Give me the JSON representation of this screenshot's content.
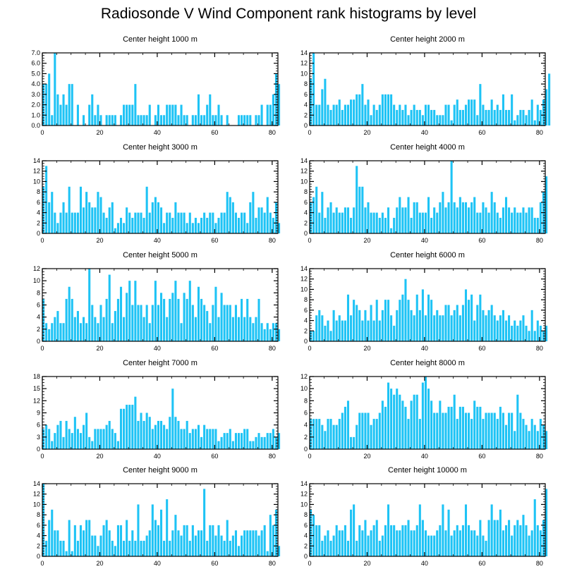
{
  "figure": {
    "title": "Radiosonde V Wind Component rank histograms by level"
  },
  "colors": {
    "bar": "#1ec3f5",
    "axis": "#000000",
    "background": "#ffffff"
  },
  "chart_data": [
    {
      "type": "bar",
      "title": "Center height 1000 m",
      "xlabel": "",
      "ylabel": "",
      "xlim": [
        0,
        82
      ],
      "ylim": [
        0,
        7
      ],
      "xticks": [
        0,
        20,
        40,
        60,
        80
      ],
      "yticks": [
        0,
        1,
        2,
        3,
        4,
        5,
        6,
        7
      ],
      "ytick_labels": [
        "0.0",
        "1.0",
        "2.0",
        "3.0",
        "4.0",
        "5.0",
        "6.0",
        "7.0"
      ],
      "values": [
        4,
        4,
        5,
        1,
        7,
        3,
        2,
        3,
        2,
        4,
        4,
        0,
        2,
        0,
        1,
        0,
        2,
        3,
        1,
        2,
        1,
        0,
        1,
        1,
        1,
        1,
        0,
        1,
        2,
        2,
        2,
        2,
        4,
        1,
        1,
        1,
        1,
        2,
        0,
        1,
        2,
        1,
        1,
        2,
        2,
        2,
        2,
        1,
        2,
        1,
        1,
        0,
        1,
        1,
        3,
        1,
        1,
        2,
        3,
        1,
        1,
        2,
        1,
        0,
        1,
        0,
        0,
        0,
        1,
        1,
        1,
        1,
        1,
        0,
        1,
        1,
        2,
        0,
        2,
        2,
        3,
        5,
        4
      ]
    },
    {
      "type": "bar",
      "title": "Center height 2000 m",
      "xlabel": "",
      "ylabel": "",
      "xlim": [
        0,
        82
      ],
      "ylim": [
        0,
        14
      ],
      "xticks": [
        0,
        20,
        40,
        60,
        80
      ],
      "yticks": [
        0,
        2,
        4,
        6,
        8,
        10,
        12,
        14
      ],
      "ytick_labels": [
        "0",
        "2",
        "4",
        "6",
        "8",
        "10",
        "12",
        "14"
      ],
      "values": [
        9,
        14,
        4,
        4,
        7,
        9,
        4,
        3,
        4,
        4,
        5,
        3,
        4,
        4,
        5,
        5,
        6,
        6,
        8,
        4,
        5,
        2,
        4,
        3,
        4,
        6,
        6,
        6,
        6,
        4,
        3,
        4,
        3,
        4,
        2,
        3,
        4,
        3,
        3,
        2,
        4,
        4,
        3,
        3,
        2,
        2,
        2,
        4,
        4,
        1,
        4,
        5,
        3,
        3,
        4,
        5,
        5,
        5,
        2,
        8,
        4,
        3,
        3,
        5,
        3,
        4,
        3,
        6,
        3,
        3,
        6,
        1,
        2,
        3,
        3,
        2,
        3,
        5,
        1,
        4,
        3,
        5,
        7,
        10
      ]
    },
    {
      "type": "bar",
      "title": "Center height 3000 m",
      "xlabel": "",
      "ylabel": "",
      "xlim": [
        0,
        82
      ],
      "ylim": [
        0,
        14
      ],
      "xticks": [
        0,
        20,
        40,
        60,
        80
      ],
      "yticks": [
        0,
        2,
        4,
        6,
        8,
        10,
        12,
        14
      ],
      "ytick_labels": [
        "0",
        "2",
        "4",
        "6",
        "8",
        "10",
        "12",
        "14"
      ],
      "values": [
        9,
        13,
        6,
        8,
        4,
        2,
        4,
        6,
        4,
        9,
        4,
        4,
        4,
        9,
        5,
        8,
        6,
        5,
        5,
        8,
        7,
        4,
        3,
        5,
        6,
        1,
        2,
        3,
        2,
        5,
        4,
        3,
        4,
        4,
        4,
        3,
        9,
        4,
        6,
        7,
        6,
        5,
        2,
        4,
        4,
        3,
        6,
        4,
        4,
        4,
        2,
        4,
        2,
        3,
        2,
        3,
        4,
        3,
        4,
        4,
        2,
        3,
        4,
        4,
        8,
        7,
        6,
        4,
        3,
        4,
        4,
        2,
        6,
        8,
        3,
        5,
        5,
        4,
        7,
        4,
        3,
        6,
        2
      ]
    },
    {
      "type": "bar",
      "title": "Center height 4000 m",
      "xlabel": "",
      "ylabel": "",
      "xlim": [
        0,
        82
      ],
      "ylim": [
        0,
        14
      ],
      "xticks": [
        0,
        20,
        40,
        60,
        80
      ],
      "yticks": [
        0,
        2,
        4,
        6,
        8,
        10,
        12,
        14
      ],
      "ytick_labels": [
        "0",
        "2",
        "4",
        "6",
        "8",
        "10",
        "12",
        "14"
      ],
      "values": [
        6,
        7,
        9,
        4,
        8,
        3,
        5,
        6,
        4,
        5,
        4,
        4,
        5,
        5,
        3,
        5,
        13,
        9,
        9,
        5,
        6,
        4,
        4,
        4,
        3,
        4,
        3,
        5,
        1,
        3,
        5,
        7,
        5,
        5,
        7,
        3,
        6,
        6,
        4,
        4,
        4,
        7,
        3,
        5,
        4,
        6,
        8,
        5,
        6,
        14,
        6,
        5,
        7,
        6,
        6,
        5,
        6,
        7,
        4,
        4,
        6,
        5,
        4,
        8,
        6,
        4,
        3,
        5,
        7,
        5,
        4,
        5,
        4,
        4,
        5,
        4,
        5,
        5,
        3,
        3,
        6,
        8,
        11
      ]
    },
    {
      "type": "bar",
      "title": "Center height 5000 m",
      "xlabel": "",
      "ylabel": "",
      "xlim": [
        0,
        82
      ],
      "ylim": [
        0,
        12
      ],
      "xticks": [
        0,
        20,
        40,
        60,
        80
      ],
      "yticks": [
        0,
        2,
        4,
        6,
        8,
        10,
        12
      ],
      "ytick_labels": [
        "0",
        "2",
        "4",
        "6",
        "8",
        "10",
        "12"
      ],
      "values": [
        7,
        3,
        2,
        3,
        4,
        5,
        3,
        3,
        7,
        9,
        7,
        4,
        5,
        3,
        4,
        3,
        12,
        6,
        4,
        3,
        6,
        4,
        7,
        11,
        3,
        5,
        7,
        9,
        4,
        8,
        10,
        6,
        10,
        6,
        6,
        4,
        6,
        3,
        6,
        10,
        6,
        8,
        7,
        4,
        7,
        8,
        10,
        7,
        3,
        8,
        7,
        10,
        6,
        4,
        9,
        7,
        6,
        5,
        3,
        6,
        9,
        4,
        8,
        6,
        6,
        6,
        4,
        6,
        4,
        7,
        4,
        7,
        4,
        3,
        4,
        7,
        3,
        2,
        3,
        2,
        3,
        3,
        2
      ]
    },
    {
      "type": "bar",
      "title": "Center height 6000 m",
      "xlabel": "",
      "ylabel": "",
      "xlim": [
        0,
        82
      ],
      "ylim": [
        0,
        14
      ],
      "xticks": [
        0,
        20,
        40,
        60,
        80
      ],
      "yticks": [
        0,
        2,
        4,
        6,
        8,
        10,
        12,
        14
      ],
      "ytick_labels": [
        "0",
        "2",
        "4",
        "6",
        "8",
        "10",
        "12",
        "14"
      ],
      "values": [
        2,
        2,
        5,
        6,
        5,
        3,
        4,
        2,
        6,
        4,
        5,
        4,
        4,
        9,
        5,
        8,
        7,
        6,
        4,
        6,
        4,
        7,
        4,
        8,
        4,
        6,
        8,
        8,
        5,
        3,
        6,
        8,
        9,
        12,
        8,
        6,
        5,
        9,
        6,
        10,
        5,
        9,
        8,
        5,
        6,
        5,
        5,
        7,
        7,
        5,
        6,
        7,
        5,
        7,
        10,
        8,
        9,
        4,
        7,
        9,
        6,
        5,
        6,
        7,
        5,
        4,
        5,
        6,
        4,
        5,
        3,
        4,
        3,
        4,
        5,
        3,
        2,
        6,
        2,
        4,
        3,
        2,
        3
      ]
    },
    {
      "type": "bar",
      "title": "Center height 7000 m",
      "xlabel": "",
      "ylabel": "",
      "xlim": [
        0,
        82
      ],
      "ylim": [
        0,
        18
      ],
      "xticks": [
        0,
        20,
        40,
        60,
        80
      ],
      "yticks": [
        0,
        3,
        6,
        9,
        12,
        15,
        18
      ],
      "ytick_labels": [
        "0",
        "3",
        "6",
        "9",
        "12",
        "15",
        "18"
      ],
      "values": [
        5,
        6,
        5,
        2,
        4,
        6,
        7,
        3,
        7,
        5,
        4,
        8,
        5,
        4,
        6,
        9,
        3,
        2,
        5,
        5,
        5,
        5,
        6,
        7,
        5,
        4,
        2,
        10,
        10,
        11,
        11,
        11,
        13,
        7,
        9,
        7,
        9,
        8,
        5,
        6,
        7,
        7,
        6,
        5,
        8,
        15,
        8,
        7,
        5,
        5,
        7,
        4,
        5,
        5,
        6,
        3,
        6,
        5,
        5,
        5,
        5,
        2,
        3,
        4,
        4,
        5,
        2,
        4,
        4,
        4,
        5,
        5,
        2,
        2,
        3,
        4,
        3,
        3,
        4,
        4,
        5,
        3,
        4
      ]
    },
    {
      "type": "bar",
      "title": "Center height 8000 m",
      "xlabel": "",
      "ylabel": "",
      "xlim": [
        0,
        82
      ],
      "ylim": [
        0,
        12
      ],
      "xticks": [
        0,
        20,
        40,
        60,
        80
      ],
      "yticks": [
        0,
        2,
        4,
        6,
        8,
        10,
        12
      ],
      "ytick_labels": [
        "0",
        "2",
        "4",
        "6",
        "8",
        "10",
        "12"
      ],
      "values": [
        5,
        5,
        5,
        5,
        4,
        3,
        5,
        5,
        4,
        4,
        5,
        6,
        7,
        8,
        2,
        2,
        4,
        6,
        6,
        6,
        6,
        4,
        5,
        5,
        6,
        8,
        7,
        11,
        10,
        9,
        10,
        9,
        8,
        7,
        5,
        8,
        9,
        9,
        5,
        11,
        12,
        10,
        8,
        6,
        6,
        8,
        6,
        6,
        7,
        7,
        9,
        5,
        7,
        7,
        6,
        6,
        5,
        8,
        7,
        7,
        5,
        6,
        6,
        6,
        6,
        5,
        7,
        6,
        4,
        6,
        6,
        3,
        9,
        6,
        5,
        4,
        3,
        5,
        4,
        3,
        5,
        4,
        3
      ]
    },
    {
      "type": "bar",
      "title": "Center height 9000 m",
      "xlabel": "",
      "ylabel": "",
      "xlim": [
        0,
        82
      ],
      "ylim": [
        0,
        14
      ],
      "xticks": [
        0,
        20,
        40,
        60,
        80
      ],
      "yticks": [
        0,
        2,
        4,
        6,
        8,
        10,
        12,
        14
      ],
      "ytick_labels": [
        "0",
        "2",
        "4",
        "6",
        "8",
        "10",
        "12",
        "14"
      ],
      "values": [
        14,
        3,
        7,
        9,
        5,
        5,
        3,
        3,
        1,
        7,
        1,
        6,
        3,
        6,
        5,
        7,
        7,
        4,
        4,
        2,
        4,
        6,
        7,
        5,
        3,
        2,
        6,
        6,
        3,
        7,
        3,
        5,
        3,
        10,
        3,
        3,
        4,
        5,
        10,
        7,
        6,
        9,
        3,
        11,
        3,
        5,
        8,
        5,
        4,
        6,
        6,
        3,
        6,
        4,
        5,
        5,
        13,
        3,
        6,
        6,
        4,
        6,
        4,
        3,
        7,
        3,
        4,
        5,
        2,
        4,
        5,
        5,
        5,
        5,
        5,
        4,
        5,
        6,
        1,
        8,
        6,
        9,
        2
      ]
    },
    {
      "type": "bar",
      "title": "Center height 10000 m",
      "xlabel": "",
      "ylabel": "",
      "xlim": [
        0,
        82
      ],
      "ylim": [
        0,
        14
      ],
      "xticks": [
        0,
        20,
        40,
        60,
        80
      ],
      "yticks": [
        0,
        2,
        4,
        6,
        8,
        10,
        12,
        14
      ],
      "ytick_labels": [
        "0",
        "2",
        "4",
        "6",
        "8",
        "10",
        "12",
        "14"
      ],
      "values": [
        9,
        8,
        6,
        6,
        3,
        4,
        5,
        3,
        4,
        6,
        5,
        5,
        6,
        3,
        9,
        10,
        3,
        6,
        5,
        7,
        4,
        5,
        6,
        7,
        3,
        4,
        6,
        10,
        6,
        6,
        5,
        5,
        6,
        6,
        7,
        5,
        5,
        6,
        10,
        7,
        5,
        4,
        4,
        4,
        5,
        6,
        10,
        5,
        9,
        4,
        5,
        6,
        5,
        6,
        10,
        6,
        5,
        5,
        4,
        7,
        4,
        3,
        7,
        10,
        7,
        7,
        9,
        5,
        6,
        7,
        4,
        6,
        7,
        6,
        8,
        6,
        4,
        5,
        11,
        6,
        5,
        7,
        13
      ]
    }
  ]
}
